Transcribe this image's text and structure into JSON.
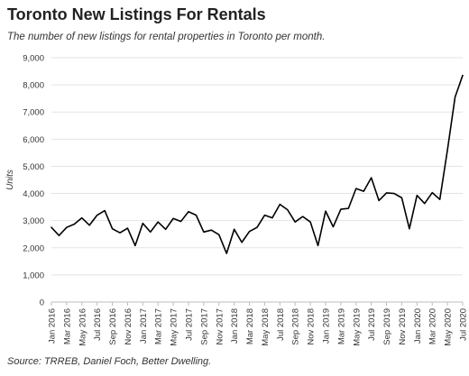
{
  "header": {
    "title": "Toronto New Listings For Rentals",
    "subtitle": "The number of new listings for rental properties in Toronto per month."
  },
  "footer": {
    "source": "Source: TRREB, Daniel Foch, Better Dwelling."
  },
  "chart_data": {
    "type": "line",
    "title": "Toronto New Listings For Rentals",
    "subtitle": "The number of new listings for rental properties in Toronto per month.",
    "xlabel": "",
    "ylabel": "Units",
    "ylim": [
      0,
      9000
    ],
    "yticks": [
      0,
      1000,
      2000,
      3000,
      4000,
      5000,
      6000,
      7000,
      8000,
      9000
    ],
    "ytick_labels": [
      "0",
      "1,000",
      "2,000",
      "3,000",
      "4,000",
      "5,000",
      "6,000",
      "7,000",
      "8,000",
      "9,000"
    ],
    "grid": true,
    "legend": "none",
    "line_color": "#000000",
    "x": [
      "Jan 2016",
      "Feb 2016",
      "Mar 2016",
      "Apr 2016",
      "May 2016",
      "Jun 2016",
      "Jul 2016",
      "Aug 2016",
      "Sep 2016",
      "Oct 2016",
      "Nov 2016",
      "Dec 2016",
      "Jan 2017",
      "Feb 2017",
      "Mar 2017",
      "Apr 2017",
      "May 2017",
      "Jun 2017",
      "Jul 2017",
      "Aug 2017",
      "Sep 2017",
      "Oct 2017",
      "Nov 2017",
      "Dec 2017",
      "Jan 2018",
      "Feb 2018",
      "Mar 2018",
      "Apr 2018",
      "May 2018",
      "Jun 2018",
      "Jul 2018",
      "Aug 2018",
      "Sep 2018",
      "Oct 2018",
      "Nov 2018",
      "Dec 2018",
      "Jan 2019",
      "Feb 2019",
      "Mar 2019",
      "Apr 2019",
      "May 2019",
      "Jun 2019",
      "Jul 2019",
      "Aug 2019",
      "Sep 2019",
      "Oct 2019",
      "Nov 2019",
      "Dec 2019",
      "Jan 2020",
      "Feb 2020",
      "Mar 2020",
      "Apr 2020",
      "May 2020",
      "Jun 2020",
      "Jul 2020"
    ],
    "xtick_labels": [
      "Jan 2016",
      "Mar 2016",
      "May 2016",
      "Jul 2016",
      "Sep 2016",
      "Nov 2016",
      "Jan 2017",
      "Mar 2017",
      "May 2017",
      "Jul 2017",
      "Sep 2017",
      "Nov 2017",
      "Jan 2018",
      "Mar 2018",
      "May 2018",
      "Jul 2018",
      "Sep 2018",
      "Nov 2018",
      "Jan 2019",
      "Mar 2019",
      "May 2019",
      "Jul 2019",
      "Sep 2019",
      "Nov 2019",
      "Jan 2020",
      "Mar 2020",
      "May 2020",
      "Jul 2020"
    ],
    "series": [
      {
        "values": [
          2750,
          2450,
          2750,
          2870,
          3100,
          2830,
          3200,
          3370,
          2700,
          2550,
          2720,
          2080,
          2900,
          2580,
          2950,
          2680,
          3080,
          2970,
          3330,
          3200,
          2580,
          2650,
          2480,
          1790,
          2680,
          2200,
          2600,
          2750,
          3200,
          3100,
          3600,
          3400,
          2950,
          3150,
          2950,
          2080,
          3350,
          2770,
          3420,
          3450,
          4180,
          4080,
          4580,
          3740,
          4020,
          4000,
          3840,
          2700,
          3930,
          3630,
          4030,
          3780,
          5600,
          7550,
          8350
        ]
      }
    ]
  }
}
